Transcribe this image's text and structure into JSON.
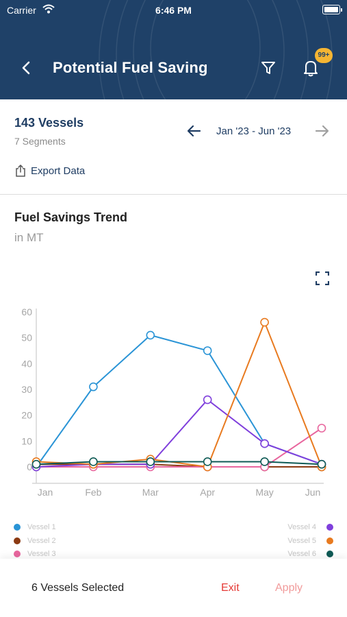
{
  "status_bar": {
    "carrier": "Carrier",
    "time": "6:46 PM"
  },
  "header": {
    "title": "Potential Fuel Saving",
    "notification_badge": "99+"
  },
  "summary": {
    "vessels": "143 Vessels",
    "segments": "7 Segments",
    "date_range": "Jan '23 - Jun '23",
    "export_label": "Export Data"
  },
  "chart": {
    "title": "Fuel Savings Trend",
    "unit": "in MT"
  },
  "chart_data": {
    "type": "line",
    "categories": [
      "Jan",
      "Feb",
      "Mar",
      "Apr",
      "May",
      "Jun"
    ],
    "ylim": [
      0,
      60
    ],
    "yticks": [
      0,
      10,
      20,
      30,
      40,
      50,
      60
    ],
    "grid": false,
    "series": [
      {
        "name": "Vessel 1",
        "color": "#2a94d6",
        "values": [
          0,
          31,
          51,
          45,
          9,
          1
        ]
      },
      {
        "name": "Vessel 2",
        "color": "#8b3a12",
        "values": [
          1,
          1,
          1,
          0,
          0,
          0
        ]
      },
      {
        "name": "Vessel 3",
        "color": "#e8669e",
        "values": [
          0,
          0,
          0,
          0,
          0,
          15
        ]
      },
      {
        "name": "Vessel 4",
        "color": "#7f3fdc",
        "values": [
          0,
          1,
          1,
          26,
          9,
          1
        ]
      },
      {
        "name": "Vessel 5",
        "color": "#e87a1f",
        "values": [
          2,
          1,
          3,
          0,
          56,
          0
        ]
      },
      {
        "name": "Vessel 6",
        "color": "#0f5a55",
        "values": [
          1,
          2,
          2,
          2,
          2,
          1
        ]
      }
    ]
  },
  "footer": {
    "selected": "6 Vessels Selected",
    "exit_label": "Exit",
    "apply_label": "Apply"
  }
}
